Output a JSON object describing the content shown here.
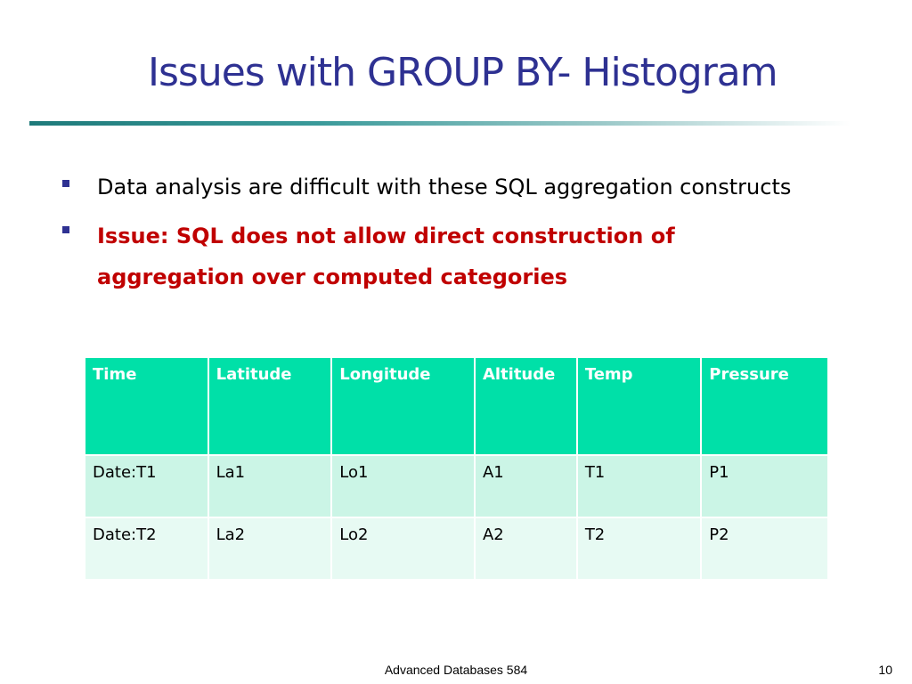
{
  "slide": {
    "title": "Issues with GROUP BY- Histogram",
    "colors": {
      "title": "#2e3192",
      "bullet_marker": "#2e3192",
      "emphasis": "#c00000",
      "table_header": "#00e0a8",
      "table_row_odd": "#cbf5e6",
      "table_row_even": "#e7faf3"
    },
    "bullets": [
      {
        "text": "Data analysis are difficult with these SQL aggregation constructs",
        "style": "normal"
      },
      {
        "text": "Issue: SQL does not allow direct construction of aggregation over computed categories",
        "style": "bold-red"
      }
    ],
    "table": {
      "headers": [
        "Time",
        "Latitude",
        "Longitude",
        "Altitude",
        "Temp",
        "Pressure"
      ],
      "rows": [
        [
          "Date:T1",
          "La1",
          "Lo1",
          "A1",
          "T1",
          "P1"
        ],
        [
          "Date:T2",
          "La2",
          "Lo2",
          "A2",
          "T2",
          "P2"
        ]
      ]
    },
    "footer": {
      "center_text": "Advanced Databases 584",
      "page_number": "10"
    }
  }
}
